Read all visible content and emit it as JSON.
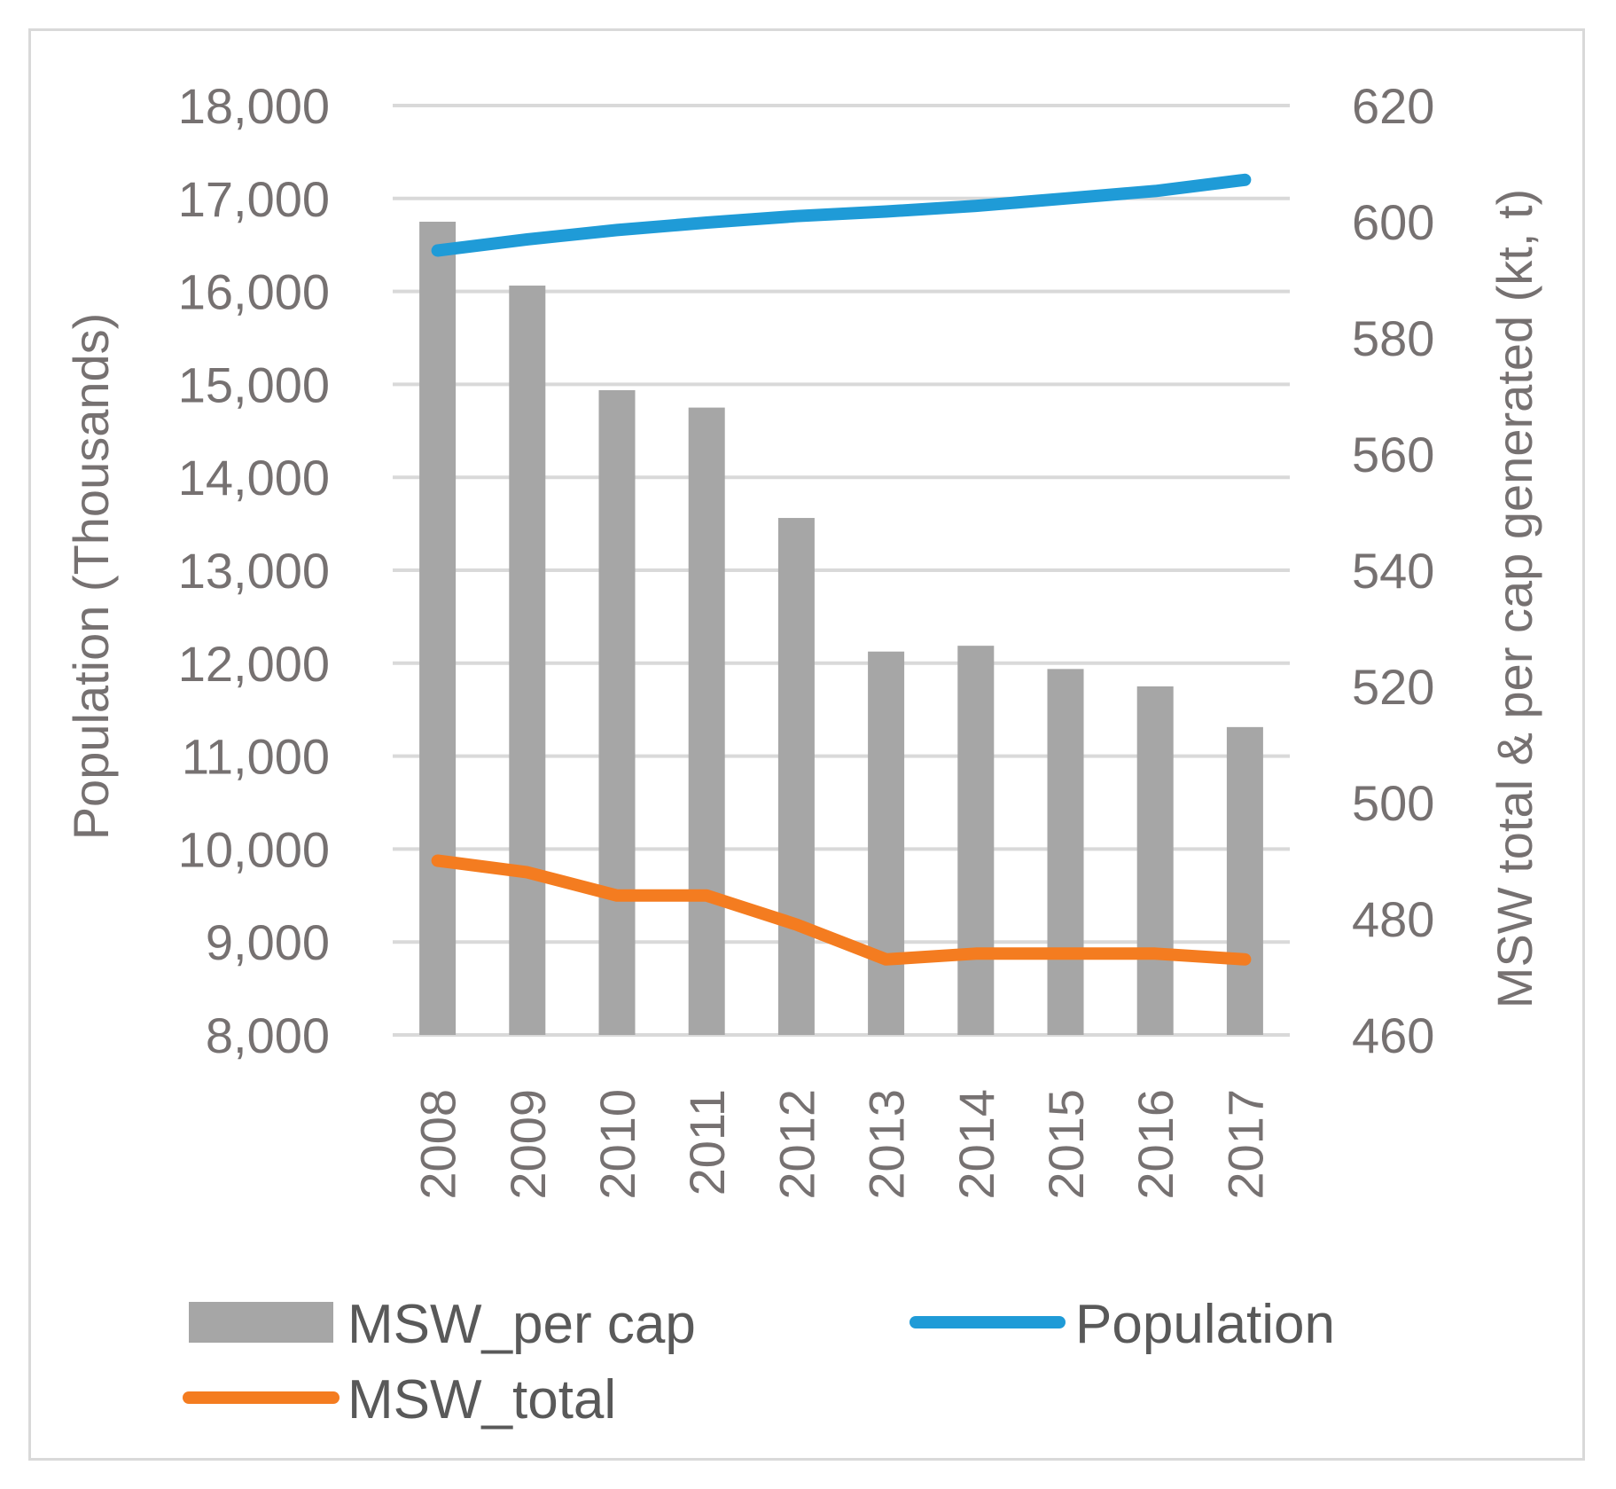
{
  "chart_data": {
    "type": "bar+line",
    "categories": [
      "2008",
      "2009",
      "2010",
      "2011",
      "2012",
      "2013",
      "2014",
      "2015",
      "2016",
      "2017"
    ],
    "series": [
      {
        "name": "MSW_per cap",
        "type": "bar",
        "axis": "right",
        "color": "#a6a6a6",
        "values": [
          600,
          589,
          571,
          568,
          549,
          526,
          527,
          523,
          520,
          513
        ]
      },
      {
        "name": "Population",
        "type": "line",
        "axis": "left",
        "color": "#1f9bd7",
        "values": [
          16440,
          16560,
          16660,
          16740,
          16810,
          16860,
          16920,
          17000,
          17080,
          17200
        ]
      },
      {
        "name": "MSW_total",
        "type": "line",
        "axis": "right",
        "color": "#f47c20",
        "values": [
          490,
          488,
          484,
          484,
          479,
          473,
          474,
          474,
          474,
          473
        ]
      }
    ],
    "left_axis": {
      "title": "Population (Thousands)",
      "ylim": [
        8000,
        18000
      ],
      "ticks": [
        8000,
        9000,
        10000,
        11000,
        12000,
        13000,
        14000,
        15000,
        16000,
        17000,
        18000
      ],
      "tick_labels": [
        "8,000",
        "9,000",
        "10,000",
        "11,000",
        "12,000",
        "13,000",
        "14,000",
        "15,000",
        "16,000",
        "17,000",
        "18,000"
      ]
    },
    "right_axis": {
      "title": "MSW total & per cap generated (kt, t)",
      "ylim": [
        460,
        620
      ],
      "ticks": [
        460,
        480,
        500,
        520,
        540,
        560,
        580,
        600,
        620
      ],
      "tick_labels": [
        "460",
        "480",
        "500",
        "520",
        "540",
        "560",
        "580",
        "600",
        "620"
      ]
    },
    "grid": true,
    "legend": {
      "position": "bottom",
      "entries": [
        "MSW_per cap",
        "Population",
        "MSW_total"
      ]
    }
  }
}
